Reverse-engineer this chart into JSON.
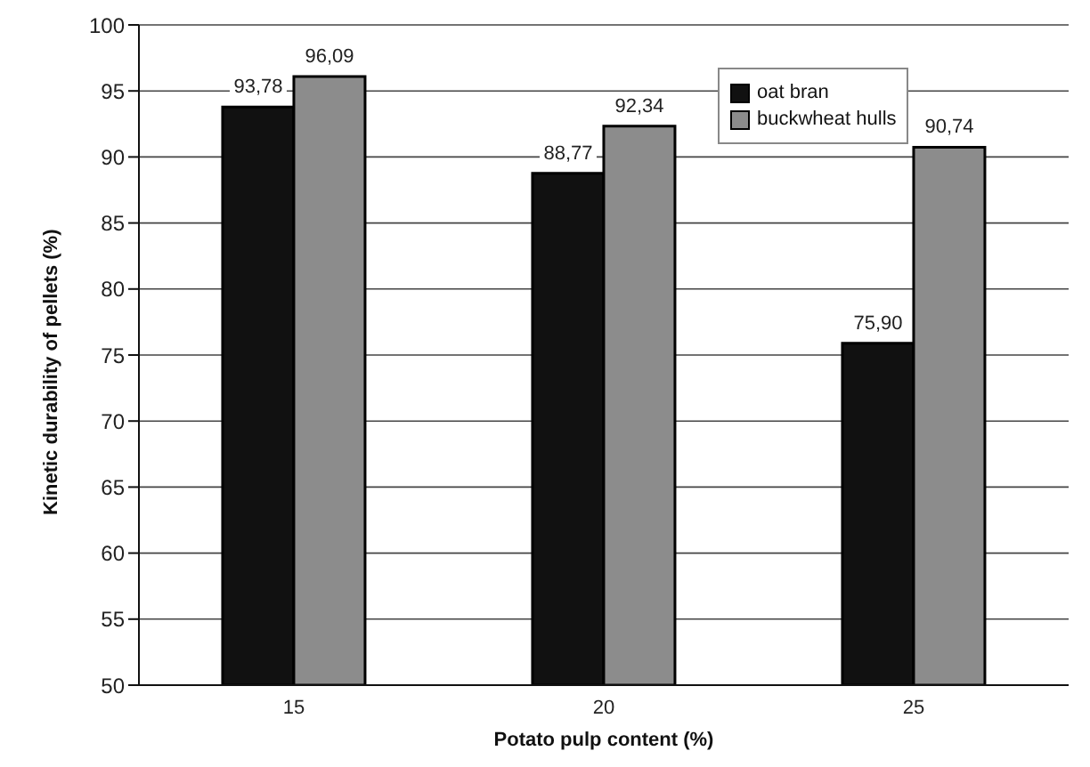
{
  "chart_data": {
    "type": "bar",
    "xlabel": "Potato pulp content (%)",
    "ylabel": "Kinetic durability of pellets (%)",
    "categories": [
      "15",
      "20",
      "25"
    ],
    "series": [
      {
        "name": "oat bran",
        "color": "#111111",
        "values": [
          93.78,
          88.77,
          75.9
        ],
        "value_labels": [
          "93,78",
          "88,77",
          "75,90"
        ]
      },
      {
        "name": "buckwheat hulls",
        "color": "#8c8c8c",
        "values": [
          96.09,
          92.34,
          90.74
        ],
        "value_labels": [
          "96,09",
          "92,34",
          "90,74"
        ]
      }
    ],
    "ylim": [
      50,
      100
    ],
    "yticks": [
      50,
      55,
      60,
      65,
      70,
      75,
      80,
      85,
      90,
      95,
      100
    ],
    "grid": "y",
    "legend": "top right"
  }
}
